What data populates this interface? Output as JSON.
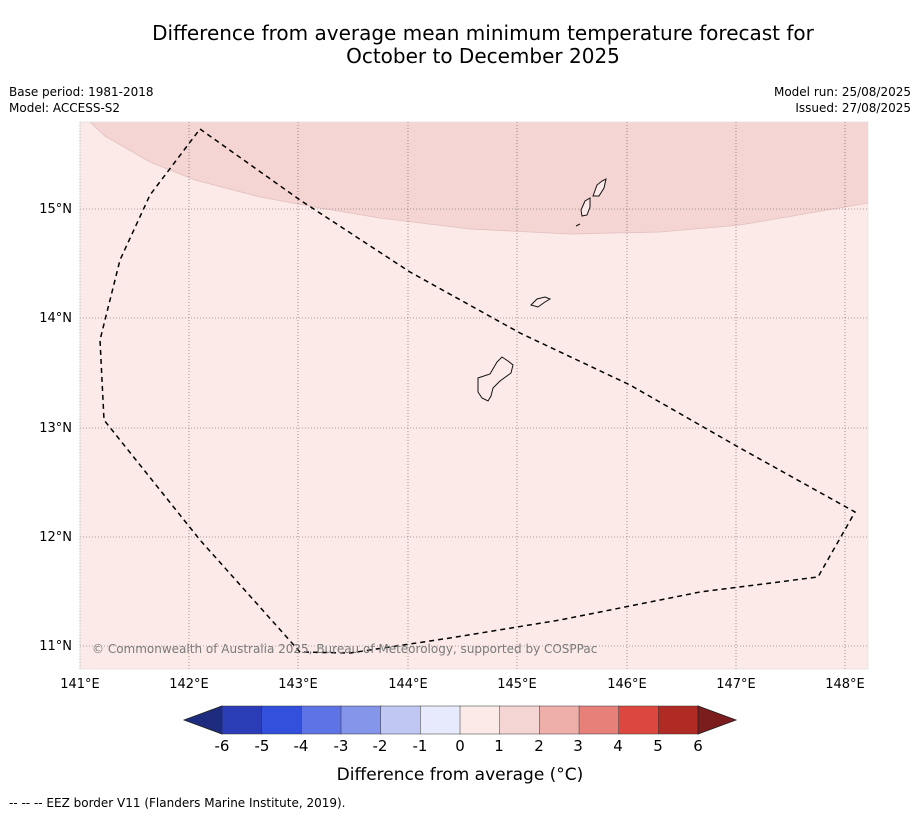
{
  "title": {
    "line1": "Difference from average mean minimum temperature forecast for",
    "line2": "October to December 2025"
  },
  "meta": {
    "base_period": "Base period: 1981-2018",
    "model": "Model: ACCESS-S2",
    "model_run": "Model run: 25/08/2025",
    "issued": "Issued: 27/08/2025"
  },
  "map": {
    "lon_labels": [
      "141°E",
      "142°E",
      "143°E",
      "144°E",
      "145°E",
      "146°E",
      "147°E",
      "148°E"
    ],
    "lat_labels": [
      "15°N",
      "14°N",
      "13°N",
      "12°N",
      "11°N"
    ],
    "copyright": "© Commonwealth of Australia 2025, Bureau of Meteorology, supported by COSPPac",
    "colors": {
      "anomaly_0_to_1": "#fbeae8",
      "anomaly_1_to_2": "#f5d5d3",
      "eez_border": "#000000"
    }
  },
  "colorbar": {
    "tick_labels": [
      "-6",
      "-5",
      "-4",
      "-3",
      "-2",
      "-1",
      "0",
      "1",
      "2",
      "3",
      "4",
      "5",
      "6"
    ],
    "label": "Difference from average (°C)",
    "colors": [
      "#1e2c80",
      "#2a3db6",
      "#3350dd",
      "#5e74e6",
      "#8495ea",
      "#c0c7f3",
      "#e6eafc",
      "#fbeae8",
      "#f5d5d3",
      "#eeafaa",
      "#e8807a",
      "#dc4840",
      "#b12b25",
      "#7b1d1c"
    ]
  },
  "legend": {
    "eez_text": "--  --  -- EEZ border V11 (Flanders Marine Institute, 2019)."
  }
}
